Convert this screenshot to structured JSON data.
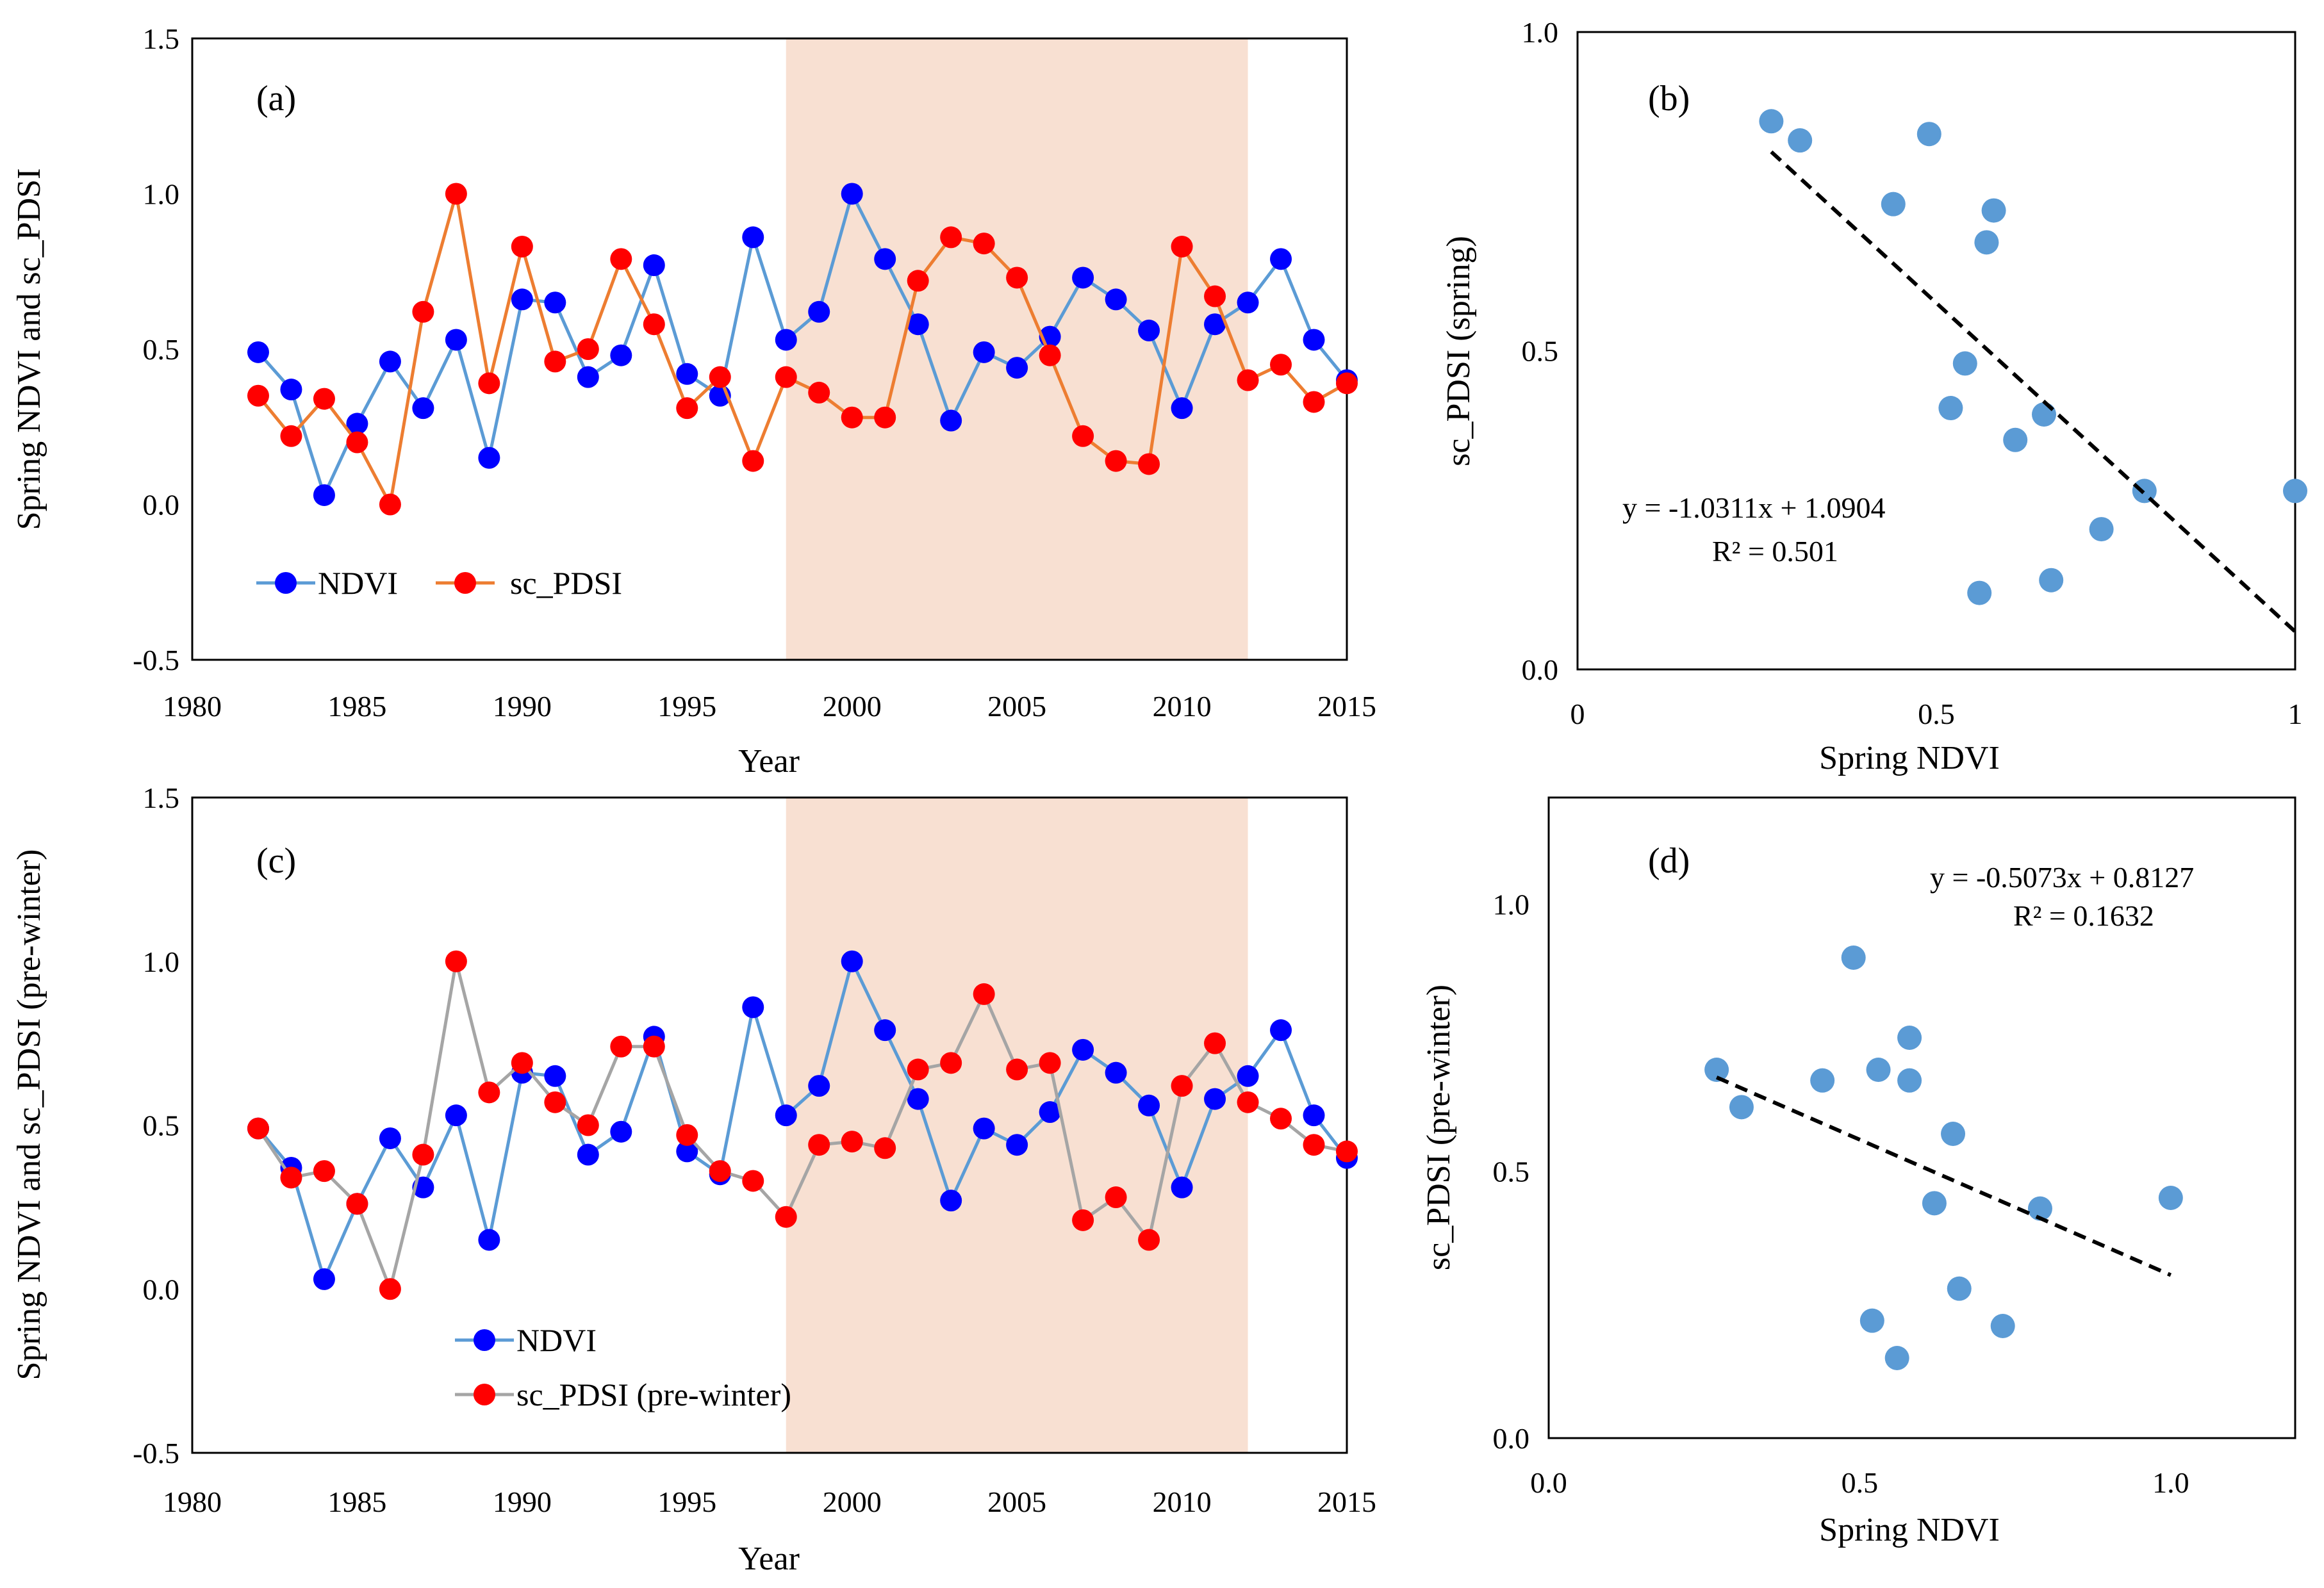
{
  "colors": {
    "ndvi_line": "#5B9BD5",
    "ndvi_marker": "#0000FF",
    "pdsi_line_spring": "#ED7D31",
    "pdsi_line_prewinter": "#A5A5A5",
    "pdsi_marker": "#FF0000",
    "shade": "#F8E0D2",
    "scatter_marker": "#5B9BD5"
  },
  "chart_data": [
    {
      "id": "a",
      "type": "line",
      "panel_label": "(a)",
      "xlabel": "Year",
      "ylabel": "Spring NDVI and sc_PDSI",
      "xlim": [
        1980,
        2015
      ],
      "ylim": [
        -0.5,
        1.5
      ],
      "xticks": [
        "1980",
        "1985",
        "1990",
        "1995",
        "2000",
        "2005",
        "2010",
        "2015"
      ],
      "yticks": [
        "-0.5",
        "0.0",
        "0.5",
        "1.0",
        "1.5"
      ],
      "shaded_range": [
        1998,
        2012
      ],
      "legend_position": "bottom-left",
      "x": [
        1982,
        1983,
        1984,
        1985,
        1986,
        1987,
        1988,
        1989,
        1990,
        1991,
        1992,
        1993,
        1994,
        1995,
        1996,
        1997,
        1998,
        1999,
        2000,
        2001,
        2002,
        2003,
        2004,
        2005,
        2006,
        2007,
        2008,
        2009,
        2010,
        2011,
        2012,
        2013,
        2014,
        2015
      ],
      "series": [
        {
          "name": "NDVI",
          "values": [
            0.49,
            0.37,
            0.03,
            0.26,
            0.46,
            0.31,
            0.53,
            0.15,
            0.66,
            0.65,
            0.41,
            0.48,
            0.77,
            0.42,
            0.35,
            0.86,
            0.53,
            0.62,
            1.0,
            0.79,
            0.58,
            0.27,
            0.49,
            0.44,
            0.54,
            0.73,
            0.66,
            0.56,
            0.31,
            0.58,
            0.65,
            0.79,
            0.53,
            0.4
          ]
        },
        {
          "name": "sc_PDSI",
          "values": [
            0.35,
            0.22,
            0.34,
            0.2,
            0.0,
            0.62,
            1.0,
            0.39,
            0.83,
            0.46,
            0.5,
            0.79,
            0.58,
            0.31,
            0.41,
            0.14,
            0.41,
            0.36,
            0.28,
            0.28,
            0.72,
            0.86,
            0.84,
            0.73,
            0.48,
            0.22,
            0.14,
            0.13,
            0.83,
            0.67,
            0.4,
            0.45,
            0.33,
            0.39
          ]
        }
      ]
    },
    {
      "id": "b",
      "type": "scatter",
      "panel_label": "(b)",
      "xlabel": "Spring NDVI",
      "ylabel": "sc_PDSI (spring)",
      "xlim": [
        0,
        1
      ],
      "ylim": [
        0,
        1
      ],
      "xticks": [
        "0",
        "0.5",
        "1"
      ],
      "yticks": [
        "0.0",
        "0.5",
        "1.0"
      ],
      "points_x": [
        0.27,
        0.31,
        0.49,
        0.44,
        0.58,
        0.57,
        0.54,
        0.52,
        0.65,
        0.61,
        0.79,
        1.0,
        0.73,
        0.56,
        0.66
      ],
      "points_y": [
        0.86,
        0.83,
        0.84,
        0.73,
        0.72,
        0.67,
        0.48,
        0.41,
        0.4,
        0.36,
        0.28,
        0.28,
        0.22,
        0.12,
        0.14
      ],
      "trendline": {
        "slope": -1.0311,
        "intercept": 1.0904,
        "x_range": [
          0.27,
          1.0
        ]
      },
      "equation": "y = -1.0311x + 1.0904",
      "r2": "R² = 0.501"
    },
    {
      "id": "c",
      "type": "line",
      "panel_label": "(c)",
      "xlabel": "Year",
      "ylabel": "Spring NDVI and sc_PDSI (pre-winter)",
      "xlim": [
        1980,
        2015
      ],
      "ylim": [
        -0.5,
        1.5
      ],
      "xticks": [
        "1980",
        "1985",
        "1990",
        "1995",
        "2000",
        "2005",
        "2010",
        "2015"
      ],
      "yticks": [
        "-0.5",
        "0.0",
        "0.5",
        "1.0",
        "1.5"
      ],
      "shaded_range": [
        1998,
        2012
      ],
      "legend_position": "bottom-center",
      "x": [
        1982,
        1983,
        1984,
        1985,
        1986,
        1987,
        1988,
        1989,
        1990,
        1991,
        1992,
        1993,
        1994,
        1995,
        1996,
        1997,
        1998,
        1999,
        2000,
        2001,
        2002,
        2003,
        2004,
        2005,
        2006,
        2007,
        2008,
        2009,
        2010,
        2011,
        2012,
        2013,
        2014,
        2015
      ],
      "series": [
        {
          "name": "NDVI",
          "values": [
            0.49,
            0.37,
            0.03,
            0.26,
            0.46,
            0.31,
            0.53,
            0.15,
            0.66,
            0.65,
            0.41,
            0.48,
            0.77,
            0.42,
            0.35,
            0.86,
            0.53,
            0.62,
            1.0,
            0.79,
            0.58,
            0.27,
            0.49,
            0.44,
            0.54,
            0.73,
            0.66,
            0.56,
            0.31,
            0.58,
            0.65,
            0.79,
            0.53,
            0.4
          ]
        },
        {
          "name": "sc_PDSI (pre-winter)",
          "values": [
            0.49,
            0.34,
            0.36,
            0.26,
            0.0,
            0.41,
            1.0,
            0.6,
            0.69,
            0.57,
            0.5,
            0.74,
            0.74,
            0.47,
            0.36,
            0.33,
            0.22,
            0.44,
            0.45,
            0.43,
            0.67,
            0.69,
            0.9,
            0.67,
            0.69,
            0.21,
            0.28,
            0.15,
            0.62,
            0.75,
            0.57,
            0.52,
            0.44,
            0.42
          ]
        }
      ]
    },
    {
      "id": "d",
      "type": "scatter",
      "panel_label": "(d)",
      "xlabel": "Spring NDVI",
      "ylabel": "sc_PDSI (pre-winter)",
      "xlim": [
        0,
        1.2
      ],
      "ylim": [
        0,
        1.2
      ],
      "xticks": [
        "0.0",
        "0.5",
        "1.0"
      ],
      "yticks": [
        "0.0",
        "0.5",
        "1.0"
      ],
      "points_x": [
        0.27,
        0.31,
        0.44,
        0.49,
        0.53,
        0.58,
        0.58,
        0.65,
        0.62,
        0.79,
        1.0,
        0.66,
        0.52,
        0.73,
        0.56
      ],
      "points_y": [
        0.69,
        0.62,
        0.67,
        0.9,
        0.69,
        0.75,
        0.67,
        0.57,
        0.44,
        0.43,
        0.45,
        0.28,
        0.22,
        0.21,
        0.15
      ],
      "trendline": {
        "slope": -0.5073,
        "intercept": 0.8127,
        "x_range": [
          0.27,
          1.0
        ]
      },
      "equation": "y = -0.5073x + 0.8127",
      "r2": "R² = 0.1632"
    }
  ]
}
